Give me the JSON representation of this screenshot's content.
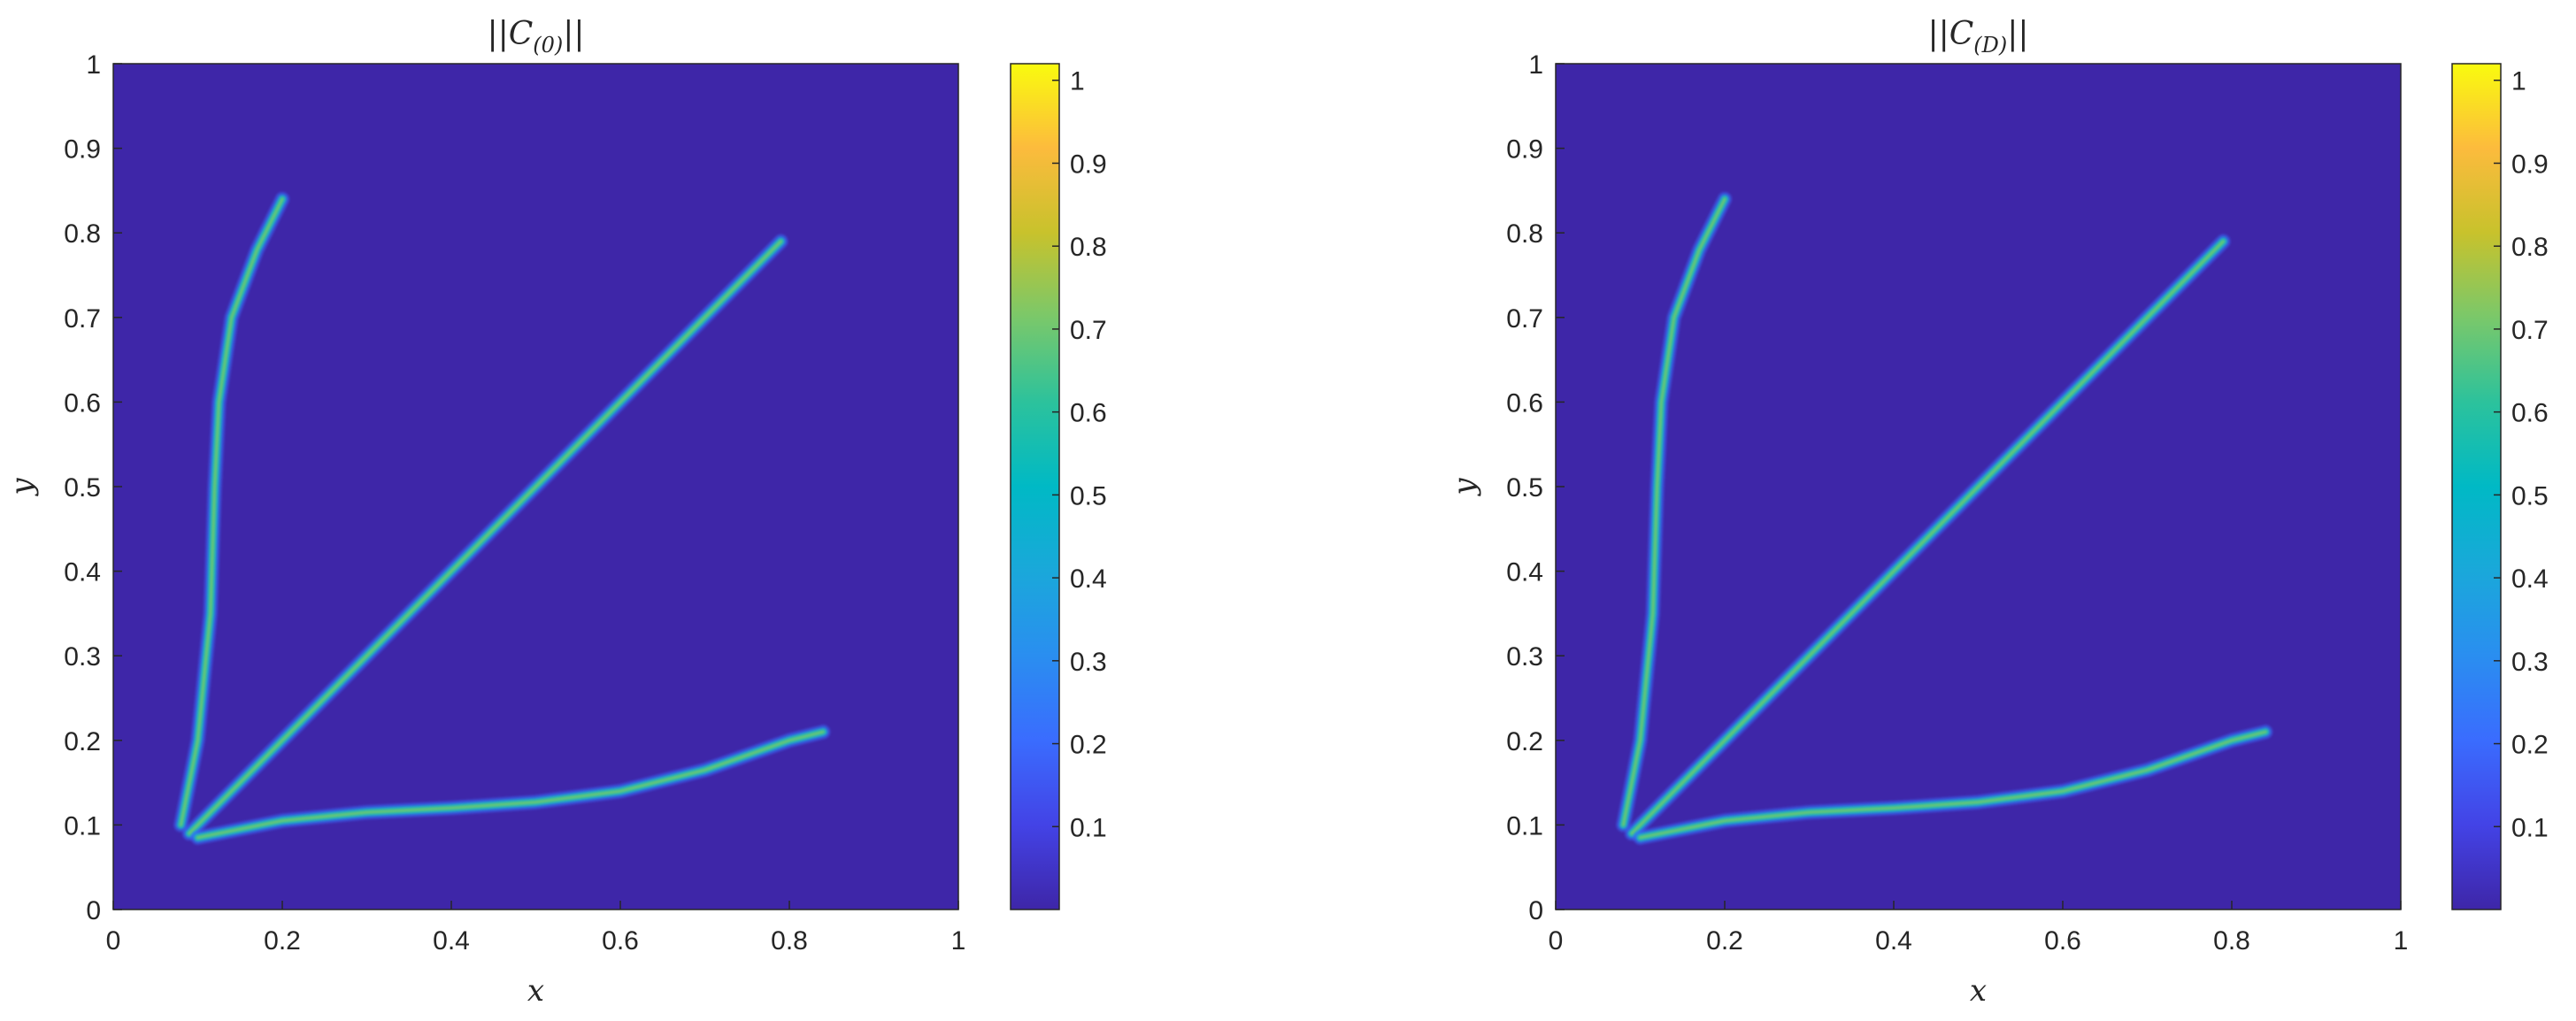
{
  "chart_data": [
    {
      "type": "heatmap",
      "title_parts": [
        "||C",
        "(0)",
        "||"
      ],
      "xlabel": "x",
      "ylabel": "y",
      "xlim": [
        0,
        1
      ],
      "ylim": [
        0,
        1
      ],
      "x_ticks": [
        "0",
        "0.2",
        "0.4",
        "0.6",
        "0.8",
        "1"
      ],
      "y_ticks": [
        "0",
        "0.1",
        "0.2",
        "0.3",
        "0.4",
        "0.5",
        "0.6",
        "0.7",
        "0.8",
        "0.9",
        "1"
      ],
      "colorbar": {
        "colormap": "parula",
        "range": [
          0,
          1.02
        ],
        "ticks": [
          "0.1",
          "0.2",
          "0.3",
          "0.4",
          "0.5",
          "0.6",
          "0.7",
          "0.8",
          "0.9",
          "1"
        ]
      },
      "background_color": "#3e26a8",
      "features": [
        {
          "name": "diagonal-ridge",
          "points": [
            [
              0.09,
              0.09
            ],
            [
              0.3,
              0.3
            ],
            [
              0.5,
              0.5
            ],
            [
              0.7,
              0.7
            ],
            [
              0.79,
              0.79
            ]
          ],
          "peak": 0.55
        },
        {
          "name": "upper-ridge",
          "points": [
            [
              0.08,
              0.1
            ],
            [
              0.1,
              0.2
            ],
            [
              0.115,
              0.35
            ],
            [
              0.12,
              0.5
            ],
            [
              0.125,
              0.6
            ],
            [
              0.14,
              0.7
            ],
            [
              0.17,
              0.78
            ],
            [
              0.2,
              0.84
            ]
          ],
          "peak": 0.55
        },
        {
          "name": "lower-ridge",
          "points": [
            [
              0.1,
              0.085
            ],
            [
              0.2,
              0.105
            ],
            [
              0.3,
              0.115
            ],
            [
              0.4,
              0.12
            ],
            [
              0.5,
              0.127
            ],
            [
              0.6,
              0.14
            ],
            [
              0.7,
              0.165
            ],
            [
              0.8,
              0.2
            ],
            [
              0.84,
              0.21
            ]
          ],
          "peak": 0.55
        }
      ]
    },
    {
      "type": "heatmap",
      "title_parts": [
        "||C",
        "(D)",
        "||"
      ],
      "xlabel": "x",
      "ylabel": "y",
      "xlim": [
        0,
        1
      ],
      "ylim": [
        0,
        1
      ],
      "x_ticks": [
        "0",
        "0.2",
        "0.4",
        "0.6",
        "0.8",
        "1"
      ],
      "y_ticks": [
        "0",
        "0.1",
        "0.2",
        "0.3",
        "0.4",
        "0.5",
        "0.6",
        "0.7",
        "0.8",
        "0.9",
        "1"
      ],
      "colorbar": {
        "colormap": "parula",
        "range": [
          0,
          1.02
        ],
        "ticks": [
          "0.1",
          "0.2",
          "0.3",
          "0.4",
          "0.5",
          "0.6",
          "0.7",
          "0.8",
          "0.9",
          "1"
        ]
      },
      "background_color": "#3e26a8",
      "features": [
        {
          "name": "diagonal-ridge",
          "points": [
            [
              0.09,
              0.09
            ],
            [
              0.3,
              0.3
            ],
            [
              0.5,
              0.5
            ],
            [
              0.7,
              0.7
            ],
            [
              0.79,
              0.79
            ]
          ],
          "peak": 0.55
        },
        {
          "name": "upper-ridge",
          "points": [
            [
              0.08,
              0.1
            ],
            [
              0.1,
              0.2
            ],
            [
              0.115,
              0.35
            ],
            [
              0.12,
              0.5
            ],
            [
              0.125,
              0.6
            ],
            [
              0.14,
              0.7
            ],
            [
              0.17,
              0.78
            ],
            [
              0.2,
              0.84
            ]
          ],
          "peak": 0.55
        },
        {
          "name": "lower-ridge",
          "points": [
            [
              0.1,
              0.085
            ],
            [
              0.2,
              0.105
            ],
            [
              0.3,
              0.115
            ],
            [
              0.4,
              0.12
            ],
            [
              0.5,
              0.127
            ],
            [
              0.6,
              0.14
            ],
            [
              0.7,
              0.165
            ],
            [
              0.8,
              0.2
            ],
            [
              0.84,
              0.21
            ]
          ],
          "peak": 0.55
        }
      ]
    }
  ]
}
